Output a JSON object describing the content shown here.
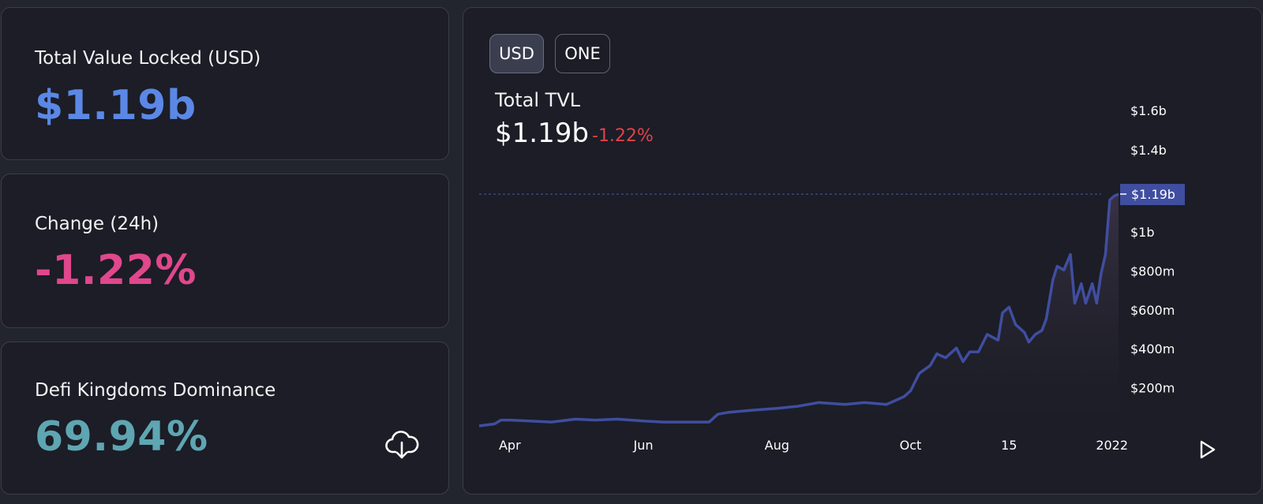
{
  "stats": {
    "tvl": {
      "label": "Total Value Locked (USD)",
      "value": "$1.19b"
    },
    "change": {
      "label": "Change (24h)",
      "value": "-1.22%"
    },
    "dominance": {
      "label": "Defi Kingdoms Dominance",
      "value": "69.94%"
    }
  },
  "chart_panel": {
    "currency_options": [
      "USD",
      "ONE"
    ],
    "selected_currency": "USD",
    "title": "Total TVL",
    "current_value": "$1.19b",
    "change": "-1.22%"
  },
  "icons": {
    "download": "cloud-download-icon",
    "play": "play-icon"
  },
  "colors": {
    "tvl_value": "#5b88e6",
    "change_value": "#e0478d",
    "dominance_value": "#5ea6b2",
    "negative_change": "#e0424b",
    "series_line": "#3f4ea0",
    "price_label_bg": "#3f4ea0"
  },
  "chart_data": {
    "type": "area",
    "title": "Total TVL",
    "xlabel": "",
    "ylabel": "",
    "x_tick_labels": [
      "Apr",
      "Jun",
      "Aug",
      "Oct",
      "15",
      "2022"
    ],
    "y_tick_labels": [
      "$200m",
      "$400m",
      "$600m",
      "$800m",
      "$1b",
      "$1.4b",
      "$1.6b"
    ],
    "ylim": [
      0,
      1.6
    ],
    "y_unit": "billions USD",
    "grid": false,
    "current_value_label": "$1.19b",
    "current_value": 1.19,
    "series": [
      {
        "name": "",
        "x": [
          "2021-03-18",
          "2021-03-25",
          "2021-03-28",
          "2021-04-01",
          "2021-04-10",
          "2021-04-20",
          "2021-05-01",
          "2021-05-10",
          "2021-05-20",
          "2021-06-01",
          "2021-06-10",
          "2021-06-20",
          "2021-07-01",
          "2021-07-05",
          "2021-07-10",
          "2021-07-20",
          "2021-08-01",
          "2021-08-10",
          "2021-08-20",
          "2021-09-01",
          "2021-09-10",
          "2021-09-20",
          "2021-09-28",
          "2021-10-01",
          "2021-10-05",
          "2021-10-10",
          "2021-10-13",
          "2021-10-17",
          "2021-10-22",
          "2021-10-25",
          "2021-10-28",
          "2021-11-01",
          "2021-11-05",
          "2021-11-10",
          "2021-11-12",
          "2021-11-15",
          "2021-11-18",
          "2021-11-20",
          "2021-11-22",
          "2021-11-24",
          "2021-11-27",
          "2021-11-30",
          "2021-12-02",
          "2021-12-05",
          "2021-12-07",
          "2021-12-10",
          "2021-12-13",
          "2021-12-15",
          "2021-12-18",
          "2021-12-20",
          "2021-12-23",
          "2021-12-25",
          "2021-12-27",
          "2021-12-29",
          "2021-12-31",
          "2022-01-01",
          "2022-01-02",
          "2022-01-04"
        ],
        "values": [
          0.0,
          0.01,
          0.03,
          0.03,
          0.025,
          0.02,
          0.035,
          0.03,
          0.035,
          0.025,
          0.02,
          0.02,
          0.02,
          0.06,
          0.07,
          0.08,
          0.09,
          0.1,
          0.12,
          0.11,
          0.12,
          0.11,
          0.15,
          0.18,
          0.27,
          0.31,
          0.37,
          0.35,
          0.4,
          0.33,
          0.38,
          0.38,
          0.47,
          0.44,
          0.58,
          0.61,
          0.52,
          0.5,
          0.48,
          0.43,
          0.47,
          0.49,
          0.55,
          0.75,
          0.82,
          0.8,
          0.88,
          0.63,
          0.73,
          0.63,
          0.73,
          0.63,
          0.78,
          0.88,
          1.16,
          1.17,
          1.18,
          1.19
        ]
      }
    ]
  }
}
